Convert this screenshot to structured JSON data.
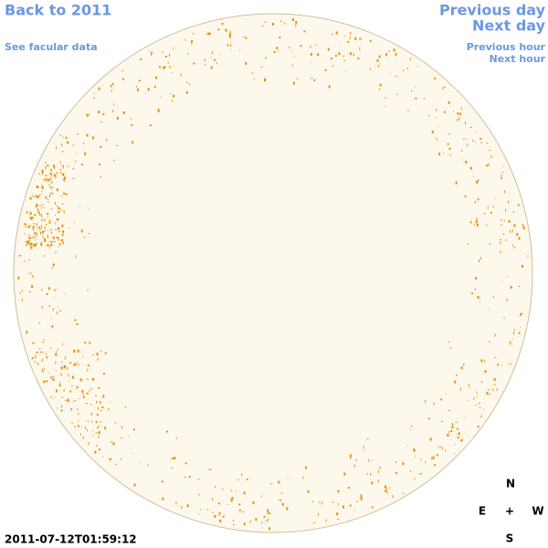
{
  "header": {
    "back_link": "Back to 2011",
    "facular_link": "See facular data",
    "previous_day": "Previous day",
    "next_day": "Next day",
    "previous_hour": "Previous hour",
    "next_hour": "Next hour"
  },
  "timestamp": "2011-07-12T01:59:12",
  "compass": {
    "north": "N",
    "east": "E",
    "center": "+",
    "west": "W",
    "south": "S"
  }
}
